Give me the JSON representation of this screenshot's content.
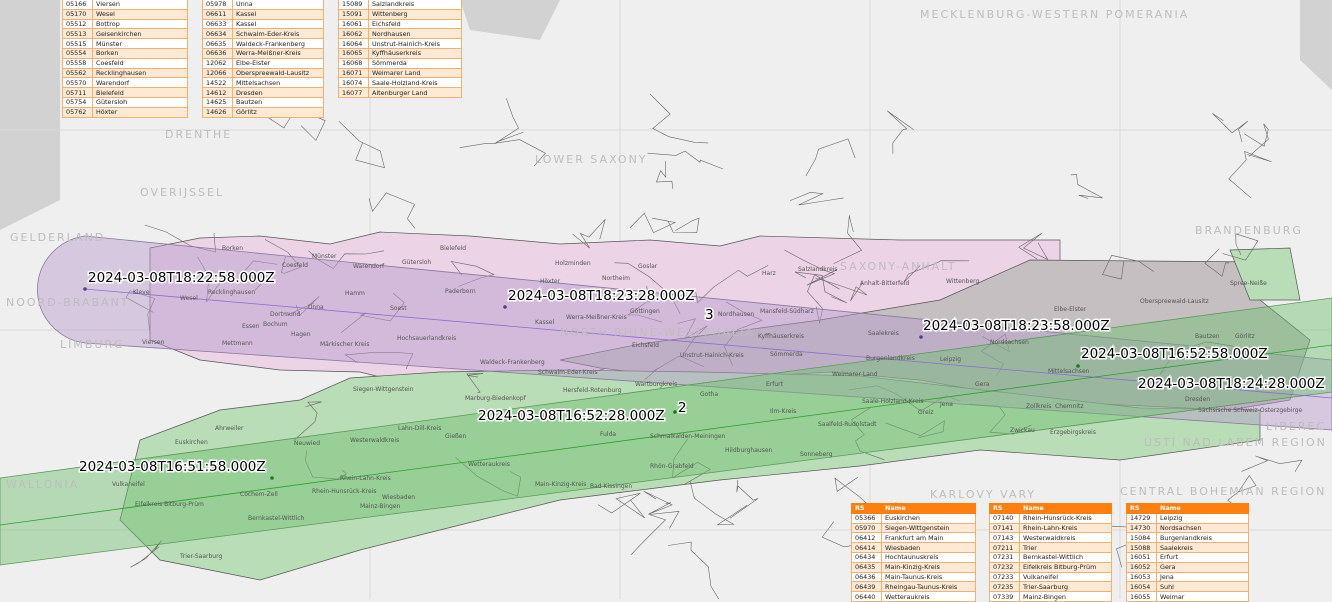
{
  "tables_top": [
    {
      "rows": [
        [
          "05166",
          "Viersen"
        ],
        [
          "05170",
          "Wesel"
        ],
        [
          "05512",
          "Bottrop"
        ],
        [
          "05513",
          "Gelsenkirchen"
        ],
        [
          "05515",
          "Münster"
        ],
        [
          "05554",
          "Borken"
        ],
        [
          "05558",
          "Coesfeld"
        ],
        [
          "05562",
          "Recklinghausen"
        ],
        [
          "05570",
          "Warendorf"
        ],
        [
          "05711",
          "Bielefeld"
        ],
        [
          "05754",
          "Gütersloh"
        ],
        [
          "05762",
          "Höxter"
        ]
      ]
    },
    {
      "rows": [
        [
          "05978",
          "Unna"
        ],
        [
          "06611",
          "Kassel"
        ],
        [
          "06633",
          "Kassel"
        ],
        [
          "06634",
          "Schwalm-Eder-Kreis"
        ],
        [
          "06635",
          "Waldeck-Frankenberg"
        ],
        [
          "06636",
          "Werra-Meißner-Kreis"
        ],
        [
          "12062",
          "Elbe-Elster"
        ],
        [
          "12066",
          "Oberspreewald-Lausitz"
        ],
        [
          "14522",
          "Mittelsachsen"
        ],
        [
          "14612",
          "Dresden"
        ],
        [
          "14625",
          "Bautzen"
        ],
        [
          "14626",
          "Görlitz"
        ]
      ]
    },
    {
      "rows": [
        [
          "15089",
          "Salzlandkreis"
        ],
        [
          "15091",
          "Wittenberg"
        ],
        [
          "16061",
          "Eichsfeld"
        ],
        [
          "16062",
          "Nordhausen"
        ],
        [
          "16064",
          "Unstrut-Hainich-Kreis"
        ],
        [
          "16065",
          "Kyffhäuserkreis"
        ],
        [
          "16068",
          "Sömmerda"
        ],
        [
          "16071",
          "Weimarer Land"
        ],
        [
          "16074",
          "Saale-Holzland-Kreis"
        ],
        [
          "16077",
          "Altenburger Land"
        ]
      ]
    }
  ],
  "tables_bottom": [
    {
      "headers": [
        "RS",
        "Name"
      ],
      "rows": [
        [
          "05366",
          "Euskirchen"
        ],
        [
          "05970",
          "Siegen-Wittgenstein"
        ],
        [
          "06412",
          "Frankfurt am Main"
        ],
        [
          "06414",
          "Wiesbaden"
        ],
        [
          "06434",
          "Hochtaunuskreis"
        ],
        [
          "06435",
          "Main-Kinzig-Kreis"
        ],
        [
          "06436",
          "Main-Taunus-Kreis"
        ],
        [
          "06439",
          "Rheingau-Taunus-Kreis"
        ],
        [
          "06440",
          "Wetteraukreis"
        ]
      ]
    },
    {
      "headers": [
        "RS",
        "Name"
      ],
      "rows": [
        [
          "07140",
          "Rhein-Hunsrück-Kreis"
        ],
        [
          "07141",
          "Rhein-Lahn-Kreis"
        ],
        [
          "07143",
          "Westerwaldkreis"
        ],
        [
          "07211",
          "Trier"
        ],
        [
          "07231",
          "Bernkastel-Wittlich"
        ],
        [
          "07232",
          "Eifelkreis Bitburg-Prüm"
        ],
        [
          "07233",
          "Vulkaneifel"
        ],
        [
          "07235",
          "Trier-Saarburg"
        ],
        [
          "07339",
          "Mainz-Bingen"
        ]
      ]
    },
    {
      "headers": [
        "RS",
        "Name"
      ],
      "rows": [
        [
          "14729",
          "Leipzig"
        ],
        [
          "14730",
          "Nordsachsen"
        ],
        [
          "15084",
          "Burgenlandkreis"
        ],
        [
          "15088",
          "Saalekreis"
        ],
        [
          "16051",
          "Erfurt"
        ],
        [
          "16052",
          "Gera"
        ],
        [
          "16053",
          "Jena"
        ],
        [
          "16054",
          "Suhl"
        ],
        [
          "16055",
          "Weimar"
        ]
      ]
    }
  ],
  "track_labels": {
    "purple": [
      "2024-03-08T18:22:58.000Z",
      "2024-03-08T18:23:28.000Z",
      "3",
      "2024-03-08T18:23:58.000Z",
      "2024-03-08T18:24:28.000Z"
    ],
    "green": [
      "2024-03-08T16:51:58.000Z",
      "2024-03-08T16:52:28.000Z",
      "2",
      "2024-03-08T16:52:58.000Z"
    ]
  },
  "regions": [
    "MECKLENBURG-WESTERN POMERANIA",
    "LOWER SAXONY",
    "NORTH RHINE-WESTPHALIA",
    "SAXONY-ANHALT",
    "BRANDENBURG",
    "DRENTHE",
    "OVERIJSSEL",
    "GELDERLAND",
    "NOORD-BRABANT",
    "LIMBURG",
    "WALLONIA",
    "ÚSTÍ NAD LABEM REGION",
    "KARLOVY VARY",
    "LIBEREC",
    "CENTRAL BOHEMIAN REGION"
  ],
  "districts": [
    "Borken",
    "Coesfeld",
    "Münster",
    "Warendorf",
    "Gütersloh",
    "Bielefeld",
    "Kleve",
    "Wesel",
    "Recklinghausen",
    "Hamm",
    "Soest",
    "Paderborn",
    "Dortmund",
    "Essen",
    "Bochum",
    "Unna",
    "Hagen",
    "Viersen",
    "Mettmann",
    "Märkischer Kreis",
    "Hochsauerlandkreis",
    "Waldeck-Frankenberg",
    "Höxter",
    "Holzminden",
    "Northeim",
    "Goslar",
    "Harz",
    "Salzlandkreis",
    "Anhalt-Bitterfeld",
    "Wittenberg",
    "Göttingen",
    "Kassel",
    "Nordhausen",
    "Mansfeld-Südharz",
    "Eichsfeld",
    "Kyffhäuserkreis",
    "Werra-Meißner-Kreis",
    "Schwalm-Eder-Kreis",
    "Unstrut-Hainich-Kreis",
    "Sömmerda",
    "Saalekreis",
    "Burgenlandkreis",
    "Leipzig",
    "Nordsachsen",
    "Elbe-Elster",
    "Oberspreewald-Lausitz",
    "Bautzen",
    "Görlitz",
    "Dresden",
    "Mittelsachsen",
    "Chemnitz",
    "Zwickau",
    "Erzgebirgskreis",
    "Weimarer Land",
    "Erfurt",
    "Gotha",
    "Ilm-Kreis",
    "Jena",
    "Gera",
    "Saale-Holzland-Kreis",
    "Saalfeld-Rudolstadt",
    "Wartburgkreis",
    "Hersfeld-Rotenburg",
    "Fulda",
    "Schmalkalden-Meiningen",
    "Rhön-Grabfeld",
    "Bad Kissingen",
    "Main-Kinzig-Kreis",
    "Wetteraukreis",
    "Gießen",
    "Lahn-Dill-Kreis",
    "Marburg-Biedenkopf",
    "Siegen-Wittgenstein",
    "Westerwaldkreis",
    "Neuwied",
    "Ahrweiler",
    "Euskirchen",
    "Vulkaneifel",
    "Cochem-Zell",
    "Rhein-Lahn-Kreis",
    "Rhein-Hunsrück-Kreis",
    "Mainz-Bingen",
    "Wiesbaden",
    "Eifelkreis Bitburg-Prüm",
    "Bernkastel-Wittlich",
    "Trier-Saarburg",
    "Sonneberg",
    "Hildburghausen",
    "Greiz",
    "Zollkreis",
    "Spree-Neiße",
    "Sächsische Schweiz-Osterzgebirge"
  ],
  "colors": {
    "purple_swath": "#b89ccc",
    "green_swath": "#6fbf6f",
    "pink_district": "#ecd3e6",
    "gray_district": "#b9b3b5",
    "green_district": "#b9ddb6",
    "table_header": "#ff7f0e",
    "table_stripe": "#fde9d4"
  }
}
